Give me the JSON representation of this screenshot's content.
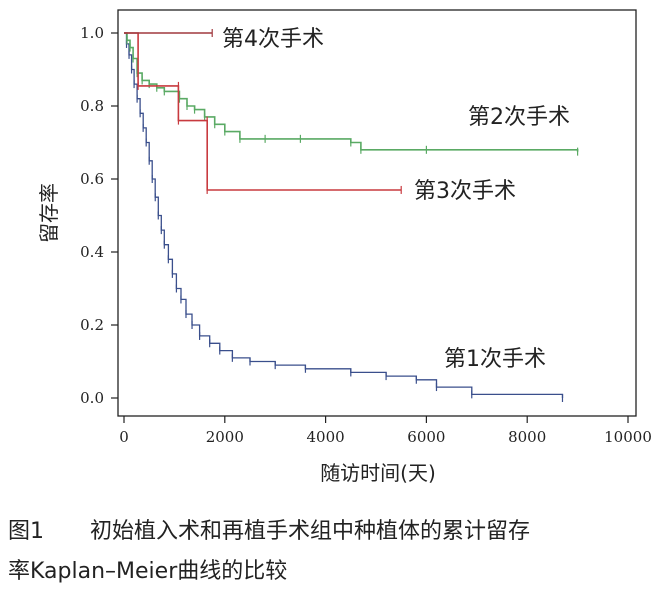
{
  "chart_data": {
    "type": "line",
    "xlabel": "随访时间(天)",
    "ylabel": "留存率",
    "xlim": [
      0,
      10000
    ],
    "ylim": [
      0,
      1.0
    ],
    "x_ticks": [
      "0",
      "2000",
      "4000",
      "6000",
      "8000",
      "10000"
    ],
    "y_ticks": [
      "0.0",
      "0.2",
      "0.4",
      "0.6",
      "0.8",
      "1.0"
    ],
    "grid": false,
    "series": [
      {
        "name": "第1次手术",
        "color": "#3a4f8c",
        "points": [
          [
            0,
            1.0
          ],
          [
            50,
            0.97
          ],
          [
            100,
            0.94
          ],
          [
            150,
            0.9
          ],
          [
            200,
            0.86
          ],
          [
            260,
            0.82
          ],
          [
            320,
            0.78
          ],
          [
            380,
            0.74
          ],
          [
            440,
            0.7
          ],
          [
            500,
            0.65
          ],
          [
            560,
            0.6
          ],
          [
            620,
            0.55
          ],
          [
            680,
            0.5
          ],
          [
            740,
            0.46
          ],
          [
            800,
            0.42
          ],
          [
            880,
            0.38
          ],
          [
            960,
            0.34
          ],
          [
            1040,
            0.3
          ],
          [
            1130,
            0.27
          ],
          [
            1230,
            0.23
          ],
          [
            1350,
            0.2
          ],
          [
            1500,
            0.17
          ],
          [
            1700,
            0.15
          ],
          [
            1900,
            0.13
          ],
          [
            2150,
            0.11
          ],
          [
            2500,
            0.1
          ],
          [
            3000,
            0.09
          ],
          [
            3600,
            0.08
          ],
          [
            4500,
            0.07
          ],
          [
            5200,
            0.06
          ],
          [
            5800,
            0.05
          ],
          [
            6200,
            0.03
          ],
          [
            6900,
            0.01
          ],
          [
            8700,
            0.0
          ]
        ]
      },
      {
        "name": "第2次手术",
        "color": "#5aaa64",
        "points": [
          [
            0,
            1.0
          ],
          [
            60,
            0.98
          ],
          [
            120,
            0.96
          ],
          [
            180,
            0.93
          ],
          [
            260,
            0.89
          ],
          [
            360,
            0.87
          ],
          [
            500,
            0.86
          ],
          [
            650,
            0.85
          ],
          [
            800,
            0.84
          ],
          [
            1100,
            0.82
          ],
          [
            1250,
            0.8
          ],
          [
            1400,
            0.79
          ],
          [
            1600,
            0.77
          ],
          [
            1800,
            0.75
          ],
          [
            2000,
            0.73
          ],
          [
            2300,
            0.71
          ],
          [
            2800,
            0.71
          ],
          [
            3500,
            0.71
          ],
          [
            4500,
            0.7
          ],
          [
            4700,
            0.68
          ],
          [
            6000,
            0.68
          ],
          [
            9000,
            0.675
          ]
        ]
      },
      {
        "name": "第3次手术",
        "color": "#c83a3f",
        "points": [
          [
            0,
            1.0
          ],
          [
            280,
            0.855
          ],
          [
            1080,
            0.855
          ],
          [
            1080,
            0.76
          ],
          [
            1650,
            0.76
          ],
          [
            1650,
            0.57
          ],
          [
            5500,
            0.57
          ]
        ]
      },
      {
        "name": "第4次手术",
        "color": "#a0393f",
        "points": [
          [
            0,
            1.0
          ],
          [
            1750,
            1.0
          ]
        ]
      }
    ]
  },
  "caption": {
    "figure_number": "图1",
    "line1": "初始植入术和再植手术组中种植体的累计留存",
    "line2": "率Kaplan–Meier曲线的比较"
  }
}
